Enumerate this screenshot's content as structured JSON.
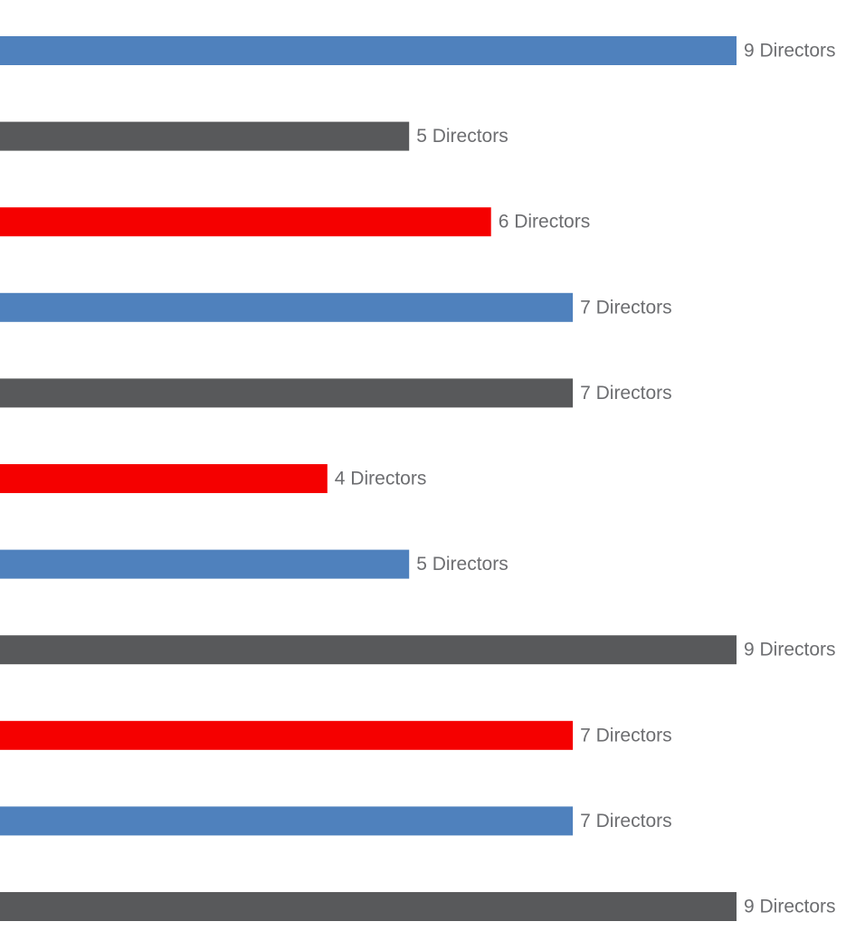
{
  "chart_data": {
    "type": "bar",
    "orientation": "horizontal",
    "title": "",
    "xlabel": "",
    "ylabel": "",
    "xlim": [
      0,
      9
    ],
    "unit_label": "Directors",
    "grid": false,
    "legend": "none",
    "bars": [
      {
        "value": 9,
        "label": "9 Directors",
        "color": "#4f81bd"
      },
      {
        "value": 5,
        "label": "5 Directors",
        "color": "#58595b"
      },
      {
        "value": 6,
        "label": "6 Directors",
        "color": "#f50000"
      },
      {
        "value": 7,
        "label": "7 Directors",
        "color": "#4f81bd"
      },
      {
        "value": 7,
        "label": "7 Directors",
        "color": "#58595b"
      },
      {
        "value": 4,
        "label": "4 Directors",
        "color": "#f50000"
      },
      {
        "value": 5,
        "label": "5 Directors",
        "color": "#4f81bd"
      },
      {
        "value": 9,
        "label": "9 Directors",
        "color": "#58595b"
      },
      {
        "value": 7,
        "label": "7 Directors",
        "color": "#f50000"
      },
      {
        "value": 7,
        "label": "7 Directors",
        "color": "#4f81bd"
      },
      {
        "value": 9,
        "label": "9 Directors",
        "color": "#58595b"
      }
    ]
  }
}
